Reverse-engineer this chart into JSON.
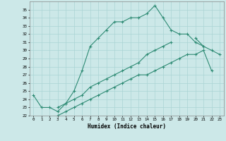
{
  "xlabel": "Humidex (Indice chaleur)",
  "x": [
    0,
    1,
    2,
    3,
    4,
    5,
    6,
    7,
    8,
    9,
    10,
    11,
    12,
    13,
    14,
    15,
    16,
    17,
    18,
    19,
    20,
    21,
    22,
    23
  ],
  "line1": [
    24.5,
    23.0,
    23.0,
    22.5,
    23.5,
    25.0,
    27.5,
    30.5,
    31.5,
    32.5,
    33.5,
    33.5,
    34.0,
    34.0,
    34.5,
    35.5,
    34.0,
    32.5,
    32.0,
    32.0,
    31.0,
    30.5,
    null,
    null
  ],
  "line2": [
    null,
    null,
    null,
    23.0,
    23.5,
    24.0,
    24.5,
    25.5,
    26.0,
    26.5,
    27.0,
    27.5,
    28.0,
    28.5,
    29.5,
    30.0,
    30.5,
    31.0,
    null,
    null,
    31.5,
    30.5,
    30.0,
    29.5
  ],
  "line3": [
    null,
    null,
    null,
    22.0,
    22.5,
    23.0,
    23.5,
    24.0,
    24.5,
    25.0,
    25.5,
    26.0,
    26.5,
    27.0,
    27.0,
    27.5,
    28.0,
    28.5,
    29.0,
    29.5,
    29.5,
    30.0,
    27.5,
    null
  ],
  "ylim": [
    22,
    36
  ],
  "xlim": [
    -0.5,
    23.5
  ],
  "yticks": [
    22,
    23,
    24,
    25,
    26,
    27,
    28,
    29,
    30,
    31,
    32,
    33,
    34,
    35
  ],
  "xticks": [
    0,
    1,
    2,
    3,
    4,
    5,
    6,
    7,
    8,
    9,
    10,
    11,
    12,
    13,
    14,
    15,
    16,
    17,
    18,
    19,
    20,
    21,
    22,
    23
  ],
  "line_color": "#2e8b74",
  "bg_color": "#cce8e8",
  "grid_color": "#aad4d4"
}
